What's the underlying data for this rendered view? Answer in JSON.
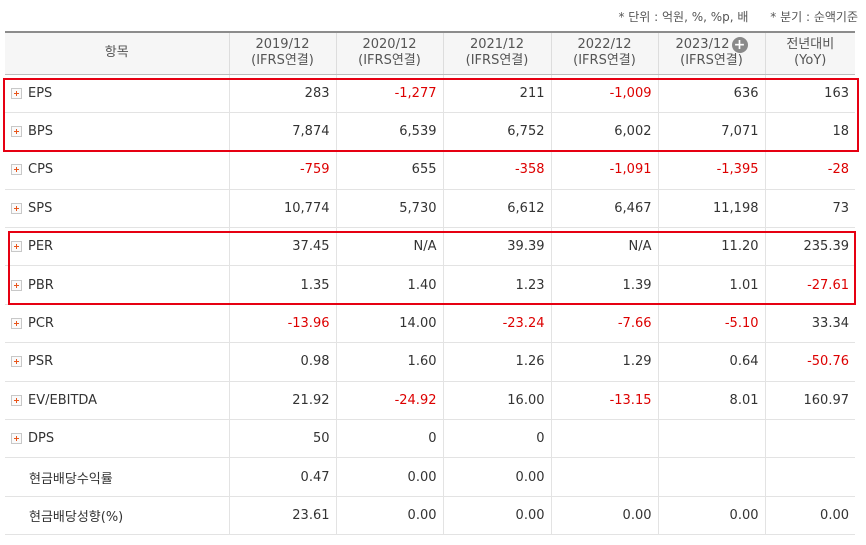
{
  "notes": {
    "unit": "* 단위 : 억원, %, %p, 배",
    "quarter": "* 분기 : 순액기준"
  },
  "header": {
    "item": "항목",
    "columns": [
      {
        "period": "2019/12",
        "basis": "(IFRS연결)"
      },
      {
        "period": "2020/12",
        "basis": "(IFRS연결)"
      },
      {
        "period": "2021/12",
        "basis": "(IFRS연결)"
      },
      {
        "period": "2022/12",
        "basis": "(IFRS연결)"
      },
      {
        "period": "2023/12",
        "basis": "(IFRS연결)"
      }
    ],
    "yoy_top": "전년대비",
    "yoy_bottom": "(YoY)",
    "add_icon": "+"
  },
  "rows": [
    {
      "label": "EPS",
      "values": [
        "283",
        "-1,277",
        "211",
        "-1,009",
        "636",
        "163"
      ]
    },
    {
      "label": "BPS",
      "values": [
        "7,874",
        "6,539",
        "6,752",
        "6,002",
        "7,071",
        "18"
      ]
    },
    {
      "label": "CPS",
      "values": [
        "-759",
        "655",
        "-358",
        "-1,091",
        "-1,395",
        "-28"
      ]
    },
    {
      "label": "SPS",
      "values": [
        "10,774",
        "5,730",
        "6,612",
        "6,467",
        "11,198",
        "73"
      ]
    },
    {
      "label": "PER",
      "values": [
        "37.45",
        "N/A",
        "39.39",
        "N/A",
        "11.20",
        "235.39"
      ]
    },
    {
      "label": "PBR",
      "values": [
        "1.35",
        "1.40",
        "1.23",
        "1.39",
        "1.01",
        "-27.61"
      ]
    },
    {
      "label": "PCR",
      "values": [
        "-13.96",
        "14.00",
        "-23.24",
        "-7.66",
        "-5.10",
        "33.34"
      ]
    },
    {
      "label": "PSR",
      "values": [
        "0.98",
        "1.60",
        "1.26",
        "1.29",
        "0.64",
        "-50.76"
      ]
    },
    {
      "label": "EV/EBITDA",
      "values": [
        "21.92",
        "-24.92",
        "16.00",
        "-13.15",
        "8.01",
        "160.97"
      ]
    },
    {
      "label": "DPS",
      "values": [
        "50",
        "0",
        "0",
        "",
        "",
        ""
      ]
    },
    {
      "label": "현금배당수익률",
      "values": [
        "0.47",
        "0.00",
        "0.00",
        "",
        "",
        ""
      ]
    },
    {
      "label": "현금배당성향(%)",
      "values": [
        "23.61",
        "0.00",
        "0.00",
        "0.00",
        "0.00",
        "0.00"
      ]
    }
  ],
  "colors": {
    "negative": "#dd0000",
    "highlight": "#e60012",
    "plus_icon": "#e8551b"
  },
  "icons": {
    "expand": "plus-square-icon",
    "add": "plus-circle-icon"
  }
}
